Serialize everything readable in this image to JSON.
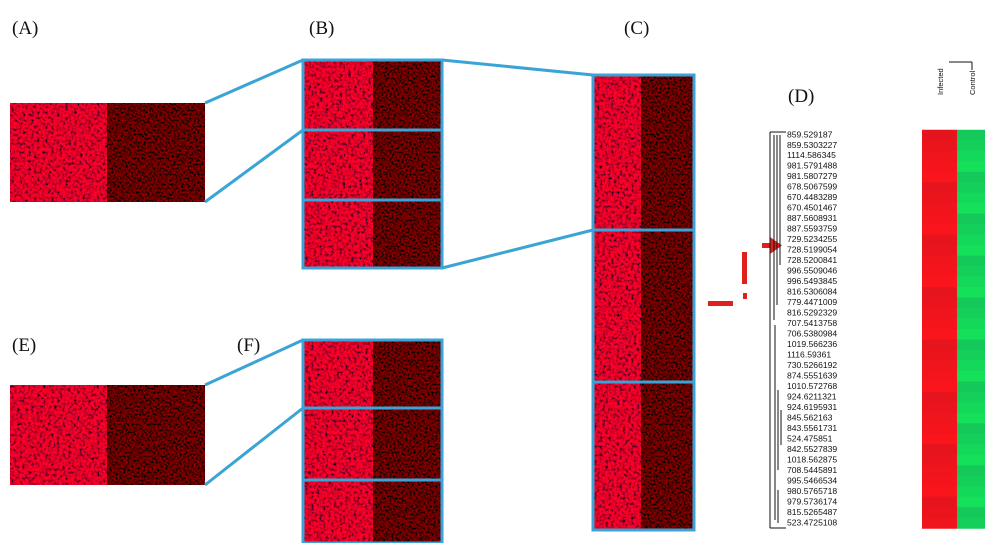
{
  "labels": {
    "a": "(A)",
    "b": "(B)",
    "c": "(C)",
    "d": "(D)",
    "e": "(E)",
    "f": "(F)"
  },
  "heatmap": {
    "columns": [
      "Infected",
      "Control"
    ],
    "rows": [
      "859.529187",
      "859.5303227",
      "1114.586345",
      "981.5791488",
      "981.5807279",
      "678.5067599",
      "670.4483289",
      "670.4501467",
      "887.5608931",
      "887.5593759",
      "729.5234255",
      "728.5199054",
      "728.5200841",
      "996.5509046",
      "996.5493845",
      "816.5306084",
      "779.4471009",
      "816.5292329",
      "707.5413758",
      "706.5380984",
      "1019.566236",
      "1116.59361",
      "730.5266192",
      "874.5551639",
      "1010.572768",
      "924.6211321",
      "924.6195931",
      "845.562163",
      "843.5561731",
      "524.475851",
      "842.5527839",
      "1018.562875",
      "708.5445891",
      "995.5466534",
      "980.5765718",
      "979.5736174",
      "815.5265487",
      "523.4725108"
    ]
  }
}
